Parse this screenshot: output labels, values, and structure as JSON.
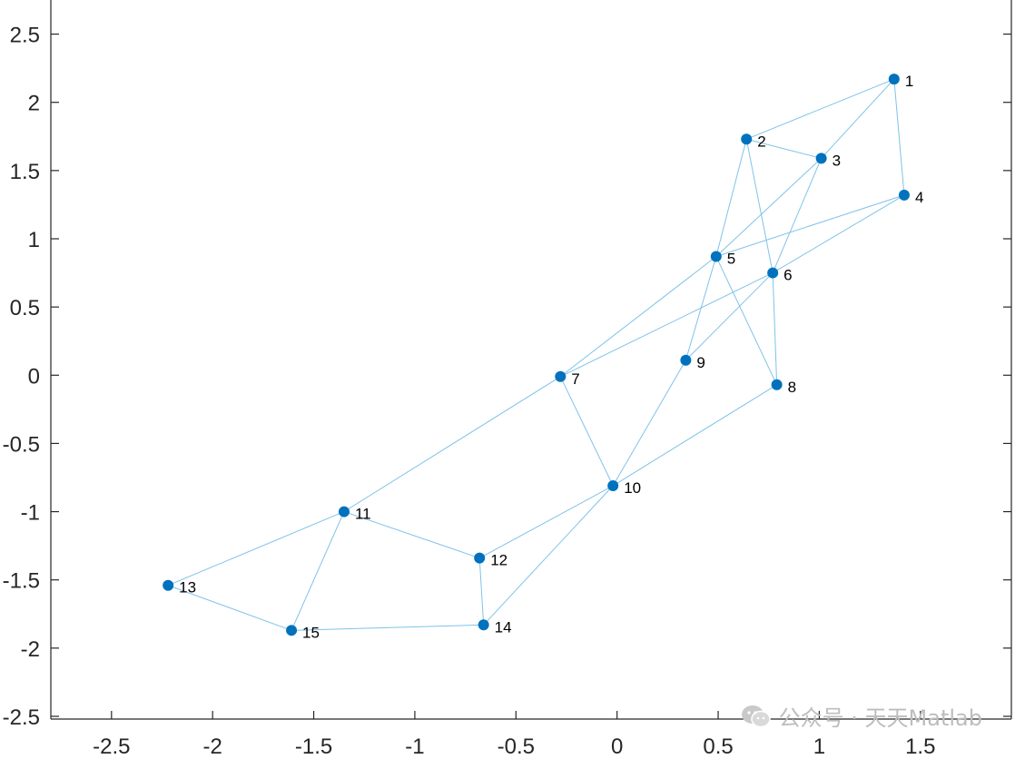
{
  "chart_data": {
    "type": "graph",
    "title": "",
    "xlabel": "",
    "ylabel": "",
    "xlim": [
      -2.8,
      1.95
    ],
    "ylim": [
      -2.52,
      2.75
    ],
    "x_ticks": [
      -2.5,
      -2,
      -1.5,
      -1,
      -0.5,
      0,
      0.5,
      1,
      1.5
    ],
    "x_tick_labels": [
      "-2.5",
      "-2",
      "-1.5",
      "-1",
      "-0.5",
      "0",
      "0.5",
      "1",
      "1.5"
    ],
    "y_ticks": [
      2.5,
      2,
      1.5,
      1,
      0.5,
      0,
      -0.5,
      -1,
      -1.5,
      -2,
      -2.5
    ],
    "y_tick_labels": [
      "2.5",
      "2",
      "1.5",
      "1",
      "0.5",
      "0",
      "-0.5",
      "-1",
      "-1.5",
      "-2",
      "-2.5"
    ],
    "grid": false,
    "node_color": "#0072BD",
    "edge_color": "#7FC3E8",
    "nodes": [
      {
        "label": "1",
        "x": 1.37,
        "y": 2.17
      },
      {
        "label": "2",
        "x": 0.64,
        "y": 1.73
      },
      {
        "label": "3",
        "x": 1.01,
        "y": 1.59
      },
      {
        "label": "4",
        "x": 1.42,
        "y": 1.32
      },
      {
        "label": "5",
        "x": 0.49,
        "y": 0.87
      },
      {
        "label": "6",
        "x": 0.77,
        "y": 0.75
      },
      {
        "label": "7",
        "x": -0.28,
        "y": -0.01
      },
      {
        "label": "8",
        "x": 0.79,
        "y": -0.07
      },
      {
        "label": "9",
        "x": 0.34,
        "y": 0.11
      },
      {
        "label": "10",
        "x": -0.02,
        "y": -0.81
      },
      {
        "label": "11",
        "x": -1.35,
        "y": -1.0
      },
      {
        "label": "12",
        "x": -0.68,
        "y": -1.34
      },
      {
        "label": "13",
        "x": -2.22,
        "y": -1.54
      },
      {
        "label": "14",
        "x": -0.66,
        "y": -1.83
      },
      {
        "label": "15",
        "x": -1.61,
        "y": -1.87
      }
    ],
    "edges": [
      [
        1,
        2
      ],
      [
        1,
        3
      ],
      [
        1,
        4
      ],
      [
        2,
        3
      ],
      [
        2,
        5
      ],
      [
        2,
        6
      ],
      [
        3,
        5
      ],
      [
        3,
        6
      ],
      [
        4,
        5
      ],
      [
        4,
        6
      ],
      [
        5,
        7
      ],
      [
        5,
        8
      ],
      [
        5,
        9
      ],
      [
        6,
        7
      ],
      [
        6,
        8
      ],
      [
        6,
        9
      ],
      [
        7,
        10
      ],
      [
        7,
        11
      ],
      [
        8,
        10
      ],
      [
        9,
        10
      ],
      [
        10,
        12
      ],
      [
        10,
        14
      ],
      [
        11,
        12
      ],
      [
        11,
        13
      ],
      [
        11,
        15
      ],
      [
        12,
        14
      ],
      [
        13,
        15
      ],
      [
        14,
        15
      ]
    ]
  },
  "watermark": {
    "text": "公众号 · 天天Matlab",
    "icon": "wechat-icon"
  }
}
